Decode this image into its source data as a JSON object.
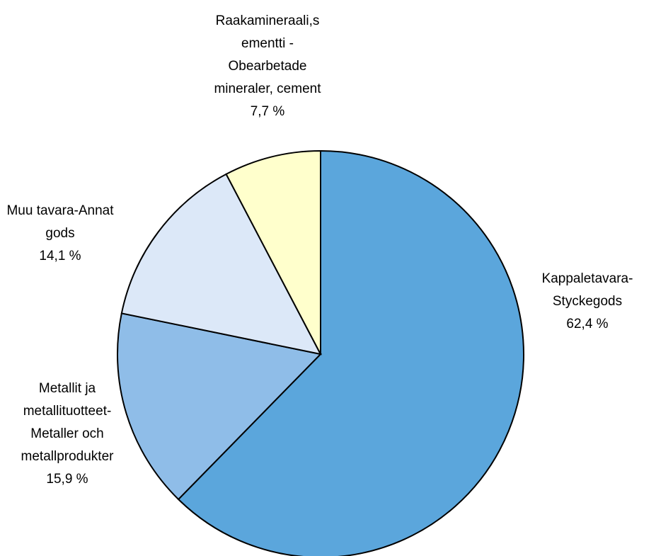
{
  "chart_data": {
    "type": "pie",
    "categories": [
      "Kappaletavara-\nStyckegods",
      "Metallit ja\nmetallituotteet-\nMetaller och\nmetallprodukter",
      "Muu tavara-Annat\ngods",
      "Raakamineraali,s\nementti -\nObearbetade\nmineraler, cement"
    ],
    "values": [
      62.4,
      15.9,
      14.1,
      7.7
    ],
    "value_labels": [
      "62,4 %",
      "15,9 %",
      "14,1 %",
      "7,7 %"
    ],
    "colors": [
      "#5ba6dc",
      "#8fbde8",
      "#dce8f8",
      "#ffffcc"
    ]
  }
}
